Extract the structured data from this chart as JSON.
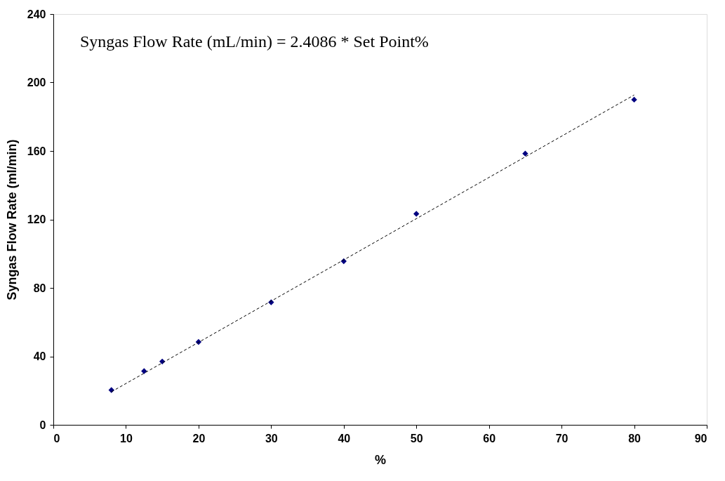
{
  "chart_data": {
    "type": "scatter",
    "xlabel": "%",
    "ylabel": "Syngas Flow Rate (ml/min)",
    "annotations": [
      "Syngas Flow Rate (mL/min) = 2.4086 * Set Point%"
    ],
    "xlim": [
      0,
      90
    ],
    "xticks": [
      0,
      10,
      20,
      30,
      40,
      50,
      60,
      70,
      80,
      90
    ],
    "ylim": [
      0,
      240
    ],
    "yticks": [
      0,
      40,
      80,
      120,
      160,
      200,
      240
    ],
    "marker": "diamond",
    "series": [
      {
        "color": "#000080",
        "x": [
          8,
          12.5,
          15,
          20,
          30,
          40,
          50,
          65,
          80
        ],
        "values": [
          20.3,
          31.4,
          37,
          48.4,
          71.6,
          95.6,
          123.3,
          158.5,
          190
        ]
      },
      {
        "type": "line",
        "color": "#000000",
        "line_style": "dashed",
        "marker": "none",
        "x": [
          8,
          80
        ],
        "values": [
          19.3,
          192.7
        ]
      }
    ]
  }
}
